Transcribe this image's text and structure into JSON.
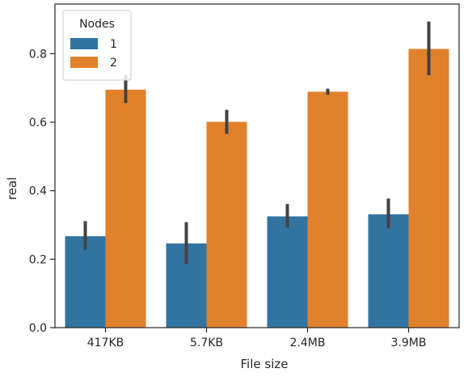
{
  "chart_data": {
    "type": "bar",
    "title": "",
    "xlabel": "File size",
    "ylabel": "real",
    "categories": [
      "417KB",
      "5.7KB",
      "2.4MB",
      "3.9MB"
    ],
    "series": [
      {
        "name": "1",
        "color": "#3274a1",
        "values": [
          0.267,
          0.246,
          0.325,
          0.331
        ],
        "error_low": [
          0.227,
          0.186,
          0.292,
          0.29
        ],
        "error_high": [
          0.311,
          0.308,
          0.361,
          0.377
        ]
      },
      {
        "name": "2",
        "color": "#e1812c",
        "values": [
          0.695,
          0.601,
          0.689,
          0.814
        ],
        "error_low": [
          0.656,
          0.566,
          0.68,
          0.737
        ],
        "error_high": [
          0.738,
          0.636,
          0.698,
          0.894
        ]
      }
    ],
    "yticks": [
      "0.0",
      "0.2",
      "0.4",
      "0.6",
      "0.8"
    ],
    "ylim": [
      0,
      0.945
    ],
    "legend": {
      "title": "Nodes",
      "placement": "top-left"
    },
    "grid": false,
    "error_bar_color": "#424242"
  }
}
